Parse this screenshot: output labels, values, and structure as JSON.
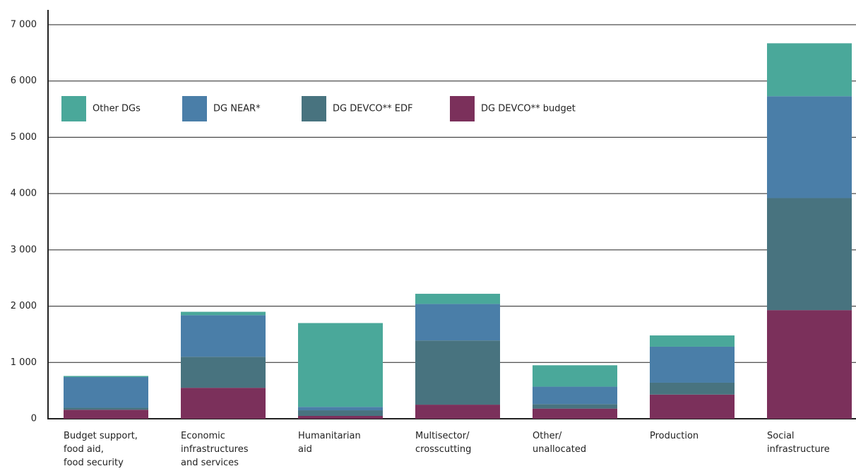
{
  "chart_data": {
    "type": "stacked_bar",
    "categories": [
      [
        "Budget support,",
        "food aid,",
        "food security"
      ],
      [
        "Economic",
        "infrastructures",
        "and services"
      ],
      [
        "Humanitarian",
        "aid"
      ],
      [
        "Multisector/",
        "crosscutting"
      ],
      [
        "Other/",
        "unallocated"
      ],
      [
        "Production"
      ],
      [
        "Social",
        "infrastructure"
      ]
    ],
    "series": [
      {
        "name": "Other DGs",
        "color": "#4aa89a",
        "values": [
          20,
          60,
          1490,
          180,
          380,
          200,
          940
        ]
      },
      {
        "name": "DG NEAR*",
        "color": "#4a7ea8",
        "values": [
          545,
          740,
          60,
          650,
          310,
          640,
          1810
        ]
      },
      {
        "name": "DG DEVCO** EDF",
        "color": "#48737f",
        "values": [
          35,
          550,
          100,
          1140,
          80,
          210,
          1990
        ]
      },
      {
        "name": "DG DEVCO** budget",
        "color": "#7b305b",
        "values": [
          160,
          550,
          50,
          250,
          180,
          430,
          1930
        ]
      }
    ],
    "ylim": [
      0,
      7000
    ],
    "yticks": [
      0,
      {
        "value": 1000,
        "label": "1 000"
      },
      {
        "value": 2000,
        "label": "2 000"
      },
      {
        "value": 3000,
        "label": "3 000"
      },
      {
        "value": 4000,
        "label": "4 000"
      },
      {
        "value": 5000,
        "label": "5 000"
      },
      {
        "value": 6000,
        "label": "6 000"
      },
      {
        "value": 7000,
        "label": "7 000"
      }
    ],
    "grid": true
  }
}
